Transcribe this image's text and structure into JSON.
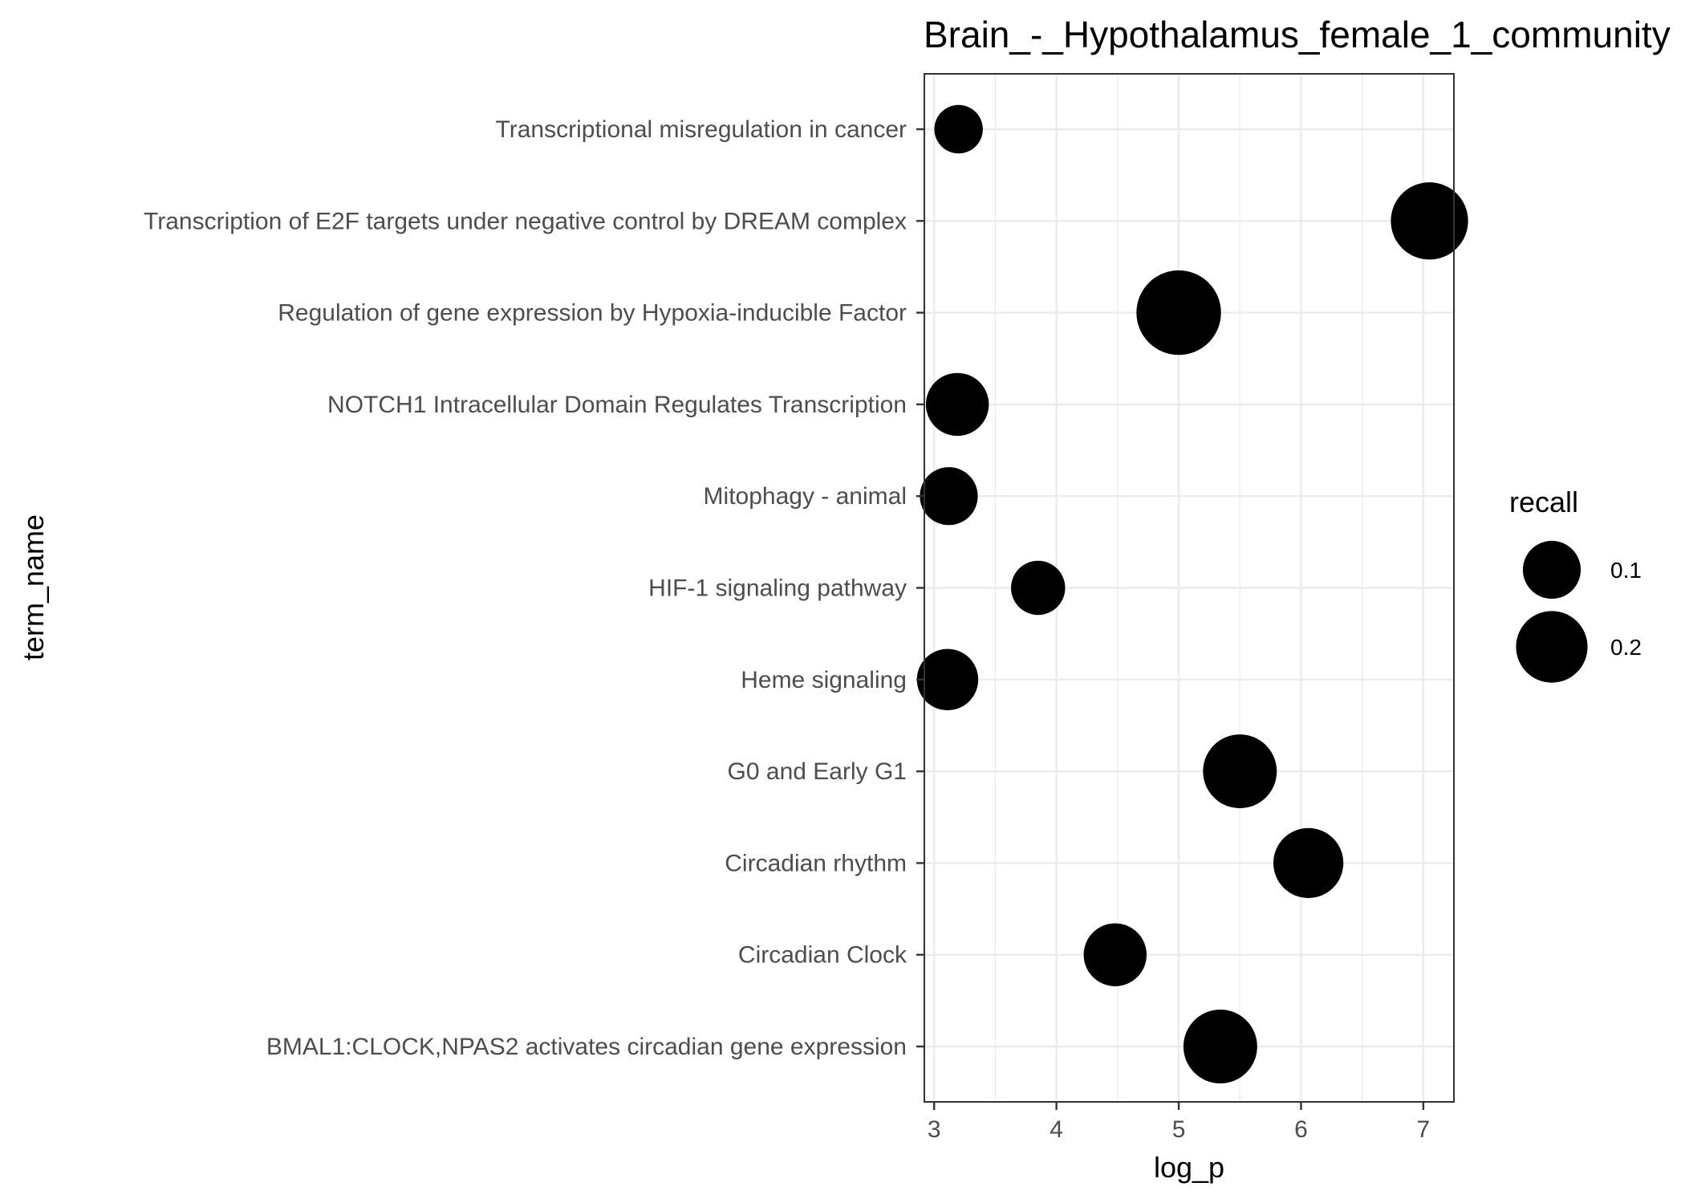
{
  "chart_data": {
    "type": "scatter",
    "title": "Brain_-_Hypothalamus_female_1_community",
    "xlabel": "log_p",
    "ylabel": "term_name",
    "xlim": [
      2.92,
      7.25
    ],
    "xticks": [
      "3",
      "4",
      "5",
      "6",
      "7"
    ],
    "grid": true,
    "legend_position": "right",
    "size_legend": {
      "title": "recall",
      "entries": [
        {
          "label": "0.1",
          "value": 0.1
        },
        {
          "label": "0.2",
          "value": 0.2
        }
      ]
    },
    "categories": [
      "Transcriptional misregulation in cancer",
      "Transcription of E2F targets under negative control by DREAM complex",
      "Regulation of gene expression by Hypoxia-inducible Factor",
      "NOTCH1 Intracellular Domain Regulates Transcription",
      "Mitophagy - animal",
      "HIF-1 signaling pathway",
      "Heme signaling",
      "G0 and Early G1",
      "Circadian rhythm",
      "Circadian Clock",
      "BMAL1:CLOCK,NPAS2 activates circadian gene expression"
    ],
    "points": [
      {
        "term": "Transcriptional misregulation in cancer",
        "log_p": 3.2,
        "recall": 0.045
      },
      {
        "term": "Transcription of E2F targets under negative control by DREAM complex",
        "log_p": 7.05,
        "recall": 0.23
      },
      {
        "term": "Regulation of gene expression by Hypoxia-inducible Factor",
        "log_p": 5.0,
        "recall": 0.3
      },
      {
        "term": "NOTCH1 Intracellular Domain Regulates Transcription",
        "log_p": 3.19,
        "recall": 0.12
      },
      {
        "term": "Mitophagy - animal",
        "log_p": 3.12,
        "recall": 0.09
      },
      {
        "term": "HIF-1 signaling pathway",
        "log_p": 3.85,
        "recall": 0.07
      },
      {
        "term": "Heme signaling",
        "log_p": 3.11,
        "recall": 0.11
      },
      {
        "term": "G0 and Early G1",
        "log_p": 5.5,
        "recall": 0.2
      },
      {
        "term": "Circadian rhythm",
        "log_p": 6.06,
        "recall": 0.17
      },
      {
        "term": "Circadian Clock",
        "log_p": 4.48,
        "recall": 0.12
      },
      {
        "term": "BMAL1:CLOCK,NPAS2 activates circadian gene expression",
        "log_p": 5.34,
        "recall": 0.2
      }
    ],
    "colors": {
      "point": "#000000",
      "grid": "#ebebeb",
      "panel_border": "#333333"
    }
  }
}
